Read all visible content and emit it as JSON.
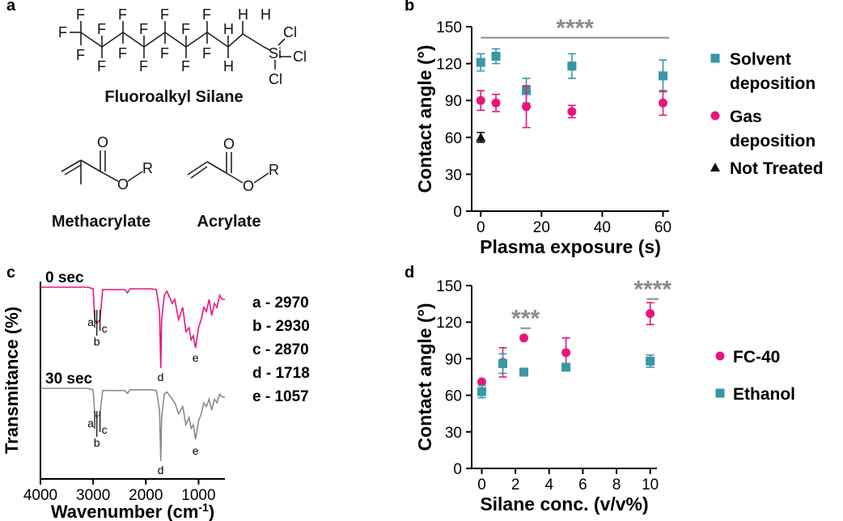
{
  "panel_labels": {
    "a": "a",
    "b": "b",
    "c": "c",
    "d": "d"
  },
  "structures": {
    "silane_caption": "Fluoroalkyl Silane",
    "methacrylate_caption": "Methacrylate",
    "acrylate_caption": "Acrylate",
    "atoms": {
      "F": "F",
      "H": "H",
      "Si": "Si",
      "Cl": "Cl",
      "O": "O",
      "R": "R"
    }
  },
  "colors": {
    "teal": "#3a97a5",
    "pink": "#e8157e",
    "gray": "#8a8a8a",
    "black": "#111111",
    "sig": "#8c8c8c"
  },
  "chart_data": [
    {
      "id": "b",
      "type": "scatter",
      "xlabel": "Plasma exposure (s)",
      "ylabel": "Contact angle (°)",
      "xlim": [
        -3,
        62
      ],
      "ylim": [
        0,
        150
      ],
      "xticks": [
        "0",
        "20",
        "40",
        "60"
      ],
      "xtick_values": [
        0,
        20,
        40,
        60
      ],
      "yticks": [
        "0",
        "30",
        "60",
        "90",
        "120",
        "150"
      ],
      "ytick_values": [
        0,
        30,
        60,
        90,
        120,
        150
      ],
      "significance": {
        "label": "****",
        "x_from": 0,
        "x_to": 62,
        "y": 141
      },
      "series": [
        {
          "name": "Solvent\ndeposition",
          "legend_lines": [
            "Solvent",
            "deposition"
          ],
          "marker": "square",
          "color": "teal",
          "x": [
            0,
            5,
            15,
            30,
            60
          ],
          "y": [
            121,
            126,
            98,
            118,
            110
          ],
          "err": [
            7,
            6,
            10,
            10,
            13
          ]
        },
        {
          "name": "Gas\ndeposition",
          "legend_lines": [
            "Gas",
            "deposition"
          ],
          "marker": "circle",
          "color": "pink",
          "x": [
            0,
            5,
            15,
            30,
            60
          ],
          "y": [
            90,
            88,
            85,
            81,
            88
          ],
          "err": [
            8,
            7,
            17,
            5,
            10
          ]
        },
        {
          "name": "Not Treated",
          "legend_lines": [
            "Not Treated"
          ],
          "marker": "triangle",
          "color": "black",
          "x": [
            0
          ],
          "y": [
            60
          ],
          "err": [
            4
          ]
        }
      ]
    },
    {
      "id": "c",
      "type": "line",
      "xlabel": "Wavenumber (cm",
      "xlabel_sup": "-1",
      "xlabel_end": ")",
      "ylabel": "Transmitance (%)",
      "xlim": [
        4000,
        500
      ],
      "xticks": [
        "4000",
        "3000",
        "2000",
        "1000"
      ],
      "xtick_values": [
        4000,
        3000,
        2000,
        1000
      ],
      "peak_labels": [
        "a",
        "b",
        "c",
        "d",
        "e"
      ],
      "peak_list": [
        "a - 2970",
        "b - 2930",
        "c - 2870",
        "d - 1718",
        "e - 1057"
      ],
      "series": [
        {
          "name": "0 sec",
          "color": "pink",
          "x": [
            4000,
            3100,
            3000,
            2970,
            2930,
            2870,
            2820,
            2400,
            2350,
            2300,
            1900,
            1800,
            1740,
            1718,
            1700,
            1650,
            1600,
            1500,
            1450,
            1380,
            1300,
            1240,
            1180,
            1140,
            1100,
            1057,
            1000,
            950,
            900,
            850,
            800,
            750,
            700,
            650,
            600,
            550,
            500
          ],
          "t": [
            1.0,
            1.0,
            0.98,
            0.6,
            0.55,
            0.6,
            0.97,
            0.97,
            0.93,
            0.98,
            0.98,
            0.97,
            0.7,
            0.0,
            0.6,
            0.9,
            0.95,
            0.8,
            0.85,
            0.6,
            0.75,
            0.45,
            0.5,
            0.35,
            0.4,
            0.25,
            0.5,
            0.6,
            0.75,
            0.7,
            0.85,
            0.65,
            0.8,
            0.75,
            0.9,
            0.85,
            0.85
          ]
        },
        {
          "name": "30 sec",
          "color": "gray",
          "x": [
            4000,
            3100,
            3000,
            2970,
            2930,
            2870,
            2820,
            2400,
            2350,
            2300,
            1900,
            1800,
            1740,
            1718,
            1700,
            1650,
            1600,
            1500,
            1450,
            1380,
            1300,
            1240,
            1180,
            1140,
            1100,
            1057,
            1000,
            950,
            900,
            850,
            800,
            750,
            700,
            650,
            600,
            550,
            500
          ],
          "t": [
            1.0,
            1.0,
            0.98,
            0.65,
            0.6,
            0.65,
            0.97,
            0.97,
            0.93,
            0.98,
            0.98,
            0.97,
            0.7,
            0.0,
            0.6,
            0.92,
            0.95,
            0.85,
            0.8,
            0.65,
            0.75,
            0.5,
            0.6,
            0.45,
            0.5,
            0.3,
            0.55,
            0.65,
            0.8,
            0.75,
            0.85,
            0.7,
            0.85,
            0.8,
            0.92,
            0.88,
            0.88
          ]
        }
      ]
    },
    {
      "id": "d",
      "type": "scatter",
      "xlabel": "Silane conc. (v/v%)",
      "ylabel": "Contact angle (°)",
      "xlim": [
        -0.6,
        10.4
      ],
      "ylim": [
        0,
        150
      ],
      "xticks": [
        "0",
        "2",
        "4",
        "6",
        "8",
        "10"
      ],
      "xtick_values": [
        0,
        2,
        4,
        6,
        8,
        10
      ],
      "yticks": [
        "0",
        "30",
        "60",
        "90",
        "120",
        "150"
      ],
      "ytick_values": [
        0,
        30,
        60,
        90,
        120,
        150
      ],
      "significance": [
        {
          "label": "***",
          "x_from": 2.3,
          "x_to": 2.9,
          "y": 115
        },
        {
          "label": "****",
          "x_from": 9.8,
          "x_to": 10.5,
          "y": 139
        }
      ],
      "series": [
        {
          "name": "FC-40",
          "marker": "circle",
          "color": "pink",
          "x": [
            0,
            1.25,
            2.5,
            5,
            10
          ],
          "y": [
            71,
            87,
            107,
            95,
            127
          ],
          "err": [
            0,
            12,
            0,
            12,
            9
          ]
        },
        {
          "name": "Ethanol",
          "marker": "square",
          "color": "teal",
          "x": [
            0,
            1.25,
            2.5,
            5,
            10
          ],
          "y": [
            63,
            86,
            79,
            83,
            88
          ],
          "err": [
            5,
            8,
            0,
            0,
            5
          ]
        }
      ]
    }
  ]
}
